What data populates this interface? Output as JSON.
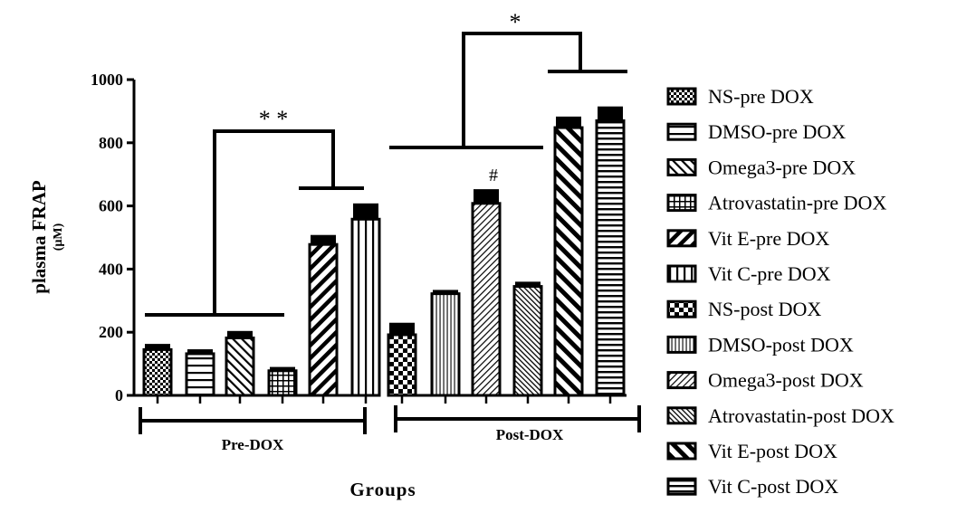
{
  "chart_data": {
    "type": "bar",
    "ylabel": "plasma FRAP",
    "yunit": "(µM)",
    "xlabel": "Groups",
    "ylim": [
      0,
      1000
    ],
    "yticks": [
      "0",
      "200",
      "400",
      "600",
      "800",
      "1000"
    ],
    "group_labels": [
      "Pre-DOX",
      "Post-DOX"
    ],
    "categories": [
      "NS-pre DOX",
      "DMSO-pre DOX",
      "Omega3-pre DOX",
      "Atrovastatin-pre DOX",
      "Vit E-pre DOX",
      "Vit C-pre DOX",
      "NS-post DOX",
      "DMSO-post DOX",
      "Omega3-post DOX",
      "Atrovastatin-post DOX",
      "Vit E-post DOX",
      "Vit C-post DOX"
    ],
    "values": [
      145,
      132,
      182,
      78,
      478,
      558,
      192,
      322,
      608,
      345,
      848,
      870
    ],
    "errors": [
      18,
      14,
      22,
      12,
      30,
      50,
      38,
      12,
      45,
      15,
      35,
      45
    ],
    "patterns": [
      "checker-small",
      "h-lines-wide",
      "diag-right",
      "grid",
      "diag-left-thick",
      "v-lines-wide",
      "checker-large",
      "v-lines",
      "diag-left",
      "diag-right-dense",
      "diag-right-thick",
      "h-lines"
    ],
    "annotations": {
      "pre_significance": "* *",
      "post_significance": "*",
      "hash_mark": "#"
    },
    "legend_position": "right",
    "colors": {
      "ink": "#000000",
      "background": "#ffffff"
    }
  }
}
